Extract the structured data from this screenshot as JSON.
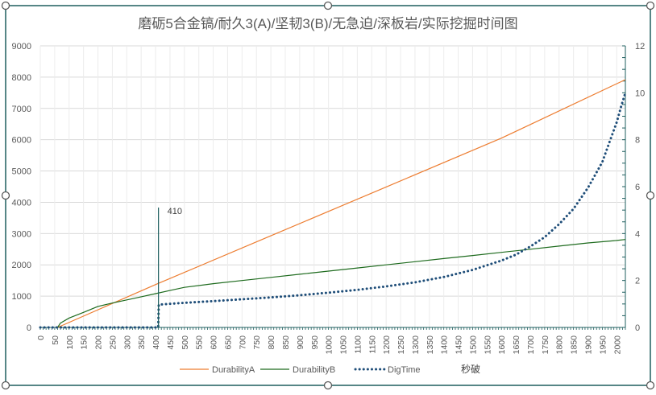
{
  "chart_data": {
    "type": "line",
    "title": "磨砺5合金镐/耐久3(A)/坚韧3(B)/无急迫/深板岩/实际挖掘时间图",
    "xlabel": "",
    "ylabel": "",
    "xlim": [
      0,
      2030
    ],
    "ylim": [
      0,
      9000
    ],
    "y2lim": [
      0,
      12
    ],
    "x_ticks": [
      0,
      50,
      100,
      150,
      200,
      250,
      300,
      350,
      400,
      450,
      500,
      550,
      600,
      650,
      700,
      750,
      800,
      850,
      900,
      950,
      1000,
      1050,
      1100,
      1150,
      1200,
      1250,
      1300,
      1350,
      1400,
      1450,
      1500,
      1550,
      1600,
      1650,
      1700,
      1750,
      1800,
      1850,
      1900,
      1950,
      2000
    ],
    "y_ticks": [
      0,
      1000,
      2000,
      3000,
      4000,
      5000,
      6000,
      7000,
      8000,
      9000
    ],
    "y2_ticks": [
      0,
      2,
      4,
      6,
      8,
      10,
      12
    ],
    "grid": true,
    "legend_position": "bottom",
    "colors": {
      "durabilityA": "#ed7d31",
      "durabilityB": "#1e6b1e",
      "digtime": "#1f4e79",
      "marker": "#1f5f5f",
      "grid": "#d9d9d9",
      "axis_text": "#595959",
      "right_axis": "#1f5f5f"
    },
    "series": [
      {
        "name": "DurabilityA",
        "axis": "left",
        "style": "solid",
        "x": [
          60,
          400,
          800,
          1200,
          1600,
          2030
        ],
        "values": [
          0,
          1370,
          2930,
          4490,
          6050,
          7920
        ]
      },
      {
        "name": "DurabilityB",
        "axis": "left",
        "style": "solid",
        "x": [
          60,
          70,
          100,
          150,
          200,
          250,
          300,
          350,
          400,
          450,
          500,
          600,
          700,
          800,
          900,
          1000,
          1100,
          1200,
          1300,
          1400,
          1500,
          1600,
          1700,
          1800,
          1900,
          2000,
          2030
        ],
        "values": [
          0,
          140,
          300,
          480,
          670,
          780,
          880,
          980,
          1080,
          1180,
          1280,
          1400,
          1500,
          1600,
          1700,
          1800,
          1900,
          2000,
          2100,
          2200,
          2300,
          2400,
          2500,
          2600,
          2700,
          2780,
          2810
        ]
      },
      {
        "name": "DigTime",
        "axis": "right",
        "style": "dotted",
        "x": [
          0,
          409,
          411,
          500,
          600,
          700,
          800,
          900,
          1000,
          1100,
          1200,
          1300,
          1400,
          1500,
          1600,
          1650,
          1700,
          1750,
          1800,
          1850,
          1900,
          1950,
          1975,
          2000,
          2015,
          2030
        ],
        "values": [
          0,
          0,
          0.97,
          1.05,
          1.12,
          1.2,
          1.28,
          1.37,
          1.48,
          1.6,
          1.75,
          1.92,
          2.15,
          2.45,
          2.85,
          3.1,
          3.45,
          3.85,
          4.4,
          5.05,
          5.95,
          7.05,
          7.9,
          8.75,
          9.4,
          10.0
        ]
      }
    ],
    "annotations": [
      {
        "type": "vline",
        "x": 410,
        "y_top": 3830,
        "label": "410"
      }
    ],
    "legend": {
      "items": [
        "DurabilityA",
        "DurabilityB",
        "DigTime"
      ],
      "extra_label": "秒破"
    }
  }
}
